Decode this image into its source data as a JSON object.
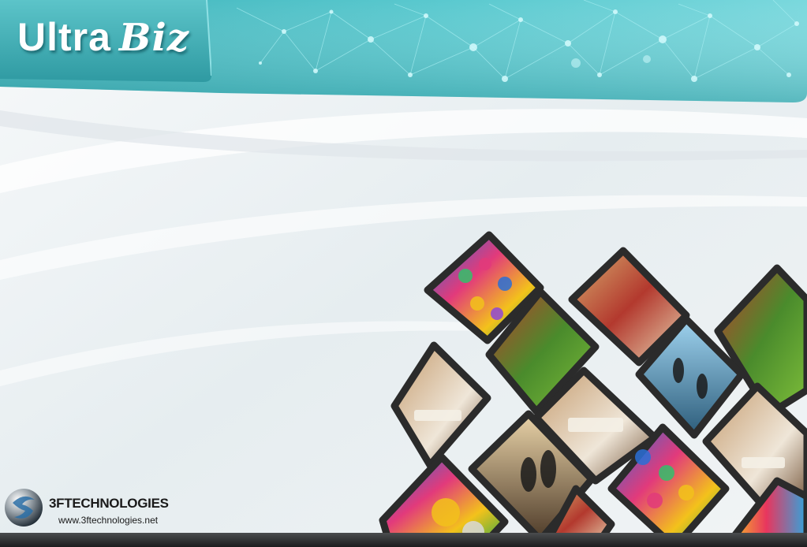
{
  "header": {
    "title_part1": "Ultra",
    "title_part2": "Biz"
  },
  "brand": {
    "name": "3FTECHNOLOGIES",
    "url": "www.3ftechnologies.net"
  },
  "colors": {
    "header_teal": "#5ec9cf",
    "header_teal_dark": "#2e9ea5",
    "footer": "#2a2b2c",
    "background": "#eef2f4"
  },
  "collage": {
    "tiles": [
      {
        "name": "paint-cans-tile"
      },
      {
        "name": "supermarket-aisle-tile"
      },
      {
        "name": "vegetable-shelves-tile"
      },
      {
        "name": "produce-display-tile"
      },
      {
        "name": "business-silhouettes-tile"
      },
      {
        "name": "hotel-room-tile"
      },
      {
        "name": "hotel-bed-tile"
      },
      {
        "name": "handshake-tile"
      },
      {
        "name": "hotel-suite-tile"
      },
      {
        "name": "paint-cans-open-tile"
      },
      {
        "name": "paint-pots-tile"
      },
      {
        "name": "colorful-tile"
      }
    ]
  }
}
